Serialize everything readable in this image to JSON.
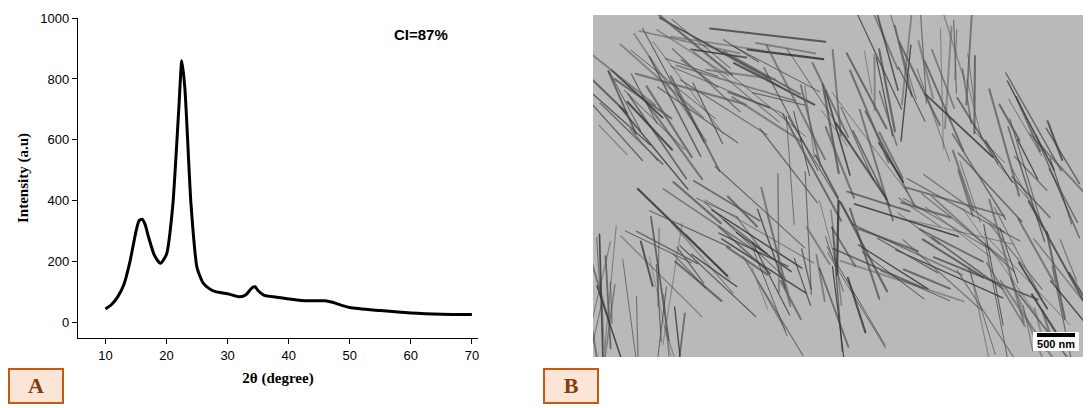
{
  "chart_data": {
    "type": "line",
    "panel_label": "A",
    "annotations": [
      "CI=87%"
    ],
    "x_label": "2θ (degree)",
    "y_label": "Intensity (a.u)",
    "x": [
      10,
      11,
      12,
      13,
      14,
      15,
      15.5,
      16,
      16.5,
      17,
      18,
      19,
      20,
      21,
      22,
      22.5,
      23,
      24,
      25,
      26,
      27,
      28,
      30,
      32,
      33,
      34,
      34.5,
      35,
      36,
      38,
      40,
      42,
      44,
      46,
      47,
      50,
      55,
      60,
      65,
      70
    ],
    "values": [
      45,
      60,
      85,
      125,
      200,
      300,
      335,
      340,
      322,
      285,
      222,
      195,
      225,
      380,
      700,
      860,
      770,
      390,
      180,
      130,
      112,
      102,
      95,
      85,
      92,
      115,
      118,
      105,
      90,
      84,
      78,
      73,
      72,
      72,
      68,
      50,
      40,
      32,
      28,
      27
    ],
    "color": "#000000",
    "xlim": [
      5.5,
      71
    ],
    "xticks": [
      10,
      20,
      30,
      40,
      50,
      60,
      70
    ],
    "ylim": [
      -50,
      1000
    ],
    "yticks": [
      0,
      200,
      400,
      600,
      800,
      1000
    ],
    "grid": false
  },
  "image_panel": {
    "panel_label": "B",
    "scale_bar": "500 nm"
  }
}
